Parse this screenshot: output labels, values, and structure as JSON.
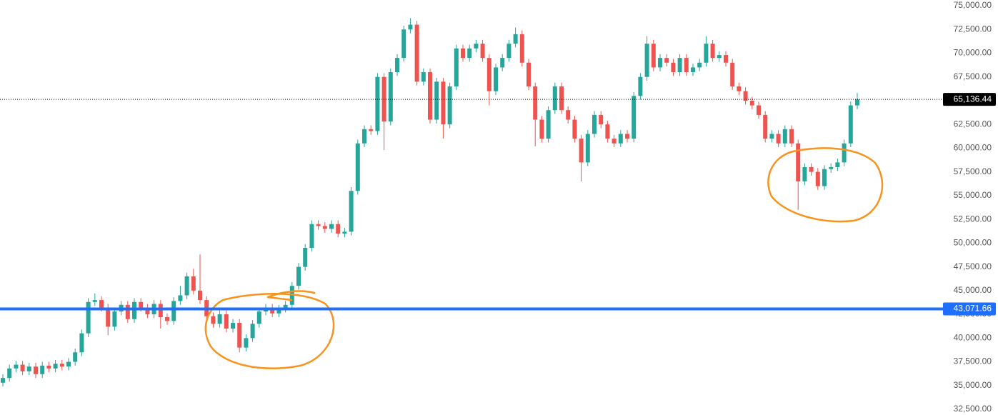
{
  "chart_data": {
    "type": "candlestick",
    "up_color": "#26a69a",
    "down_color": "#ef5350",
    "ylim": [
      31900,
      75600
    ],
    "yticks": [
      {
        "value": 32500,
        "label": "32,500.00"
      },
      {
        "value": 35000,
        "label": "35,000.00"
      },
      {
        "value": 37500,
        "label": "37,500.00"
      },
      {
        "value": 40000,
        "label": "40,000.00"
      },
      {
        "value": 42500,
        "label": "42,500.00"
      },
      {
        "value": 45000,
        "label": "45,000.00"
      },
      {
        "value": 47500,
        "label": "47,500.00"
      },
      {
        "value": 50000,
        "label": "50,000.00"
      },
      {
        "value": 52500,
        "label": "52,500.00"
      },
      {
        "value": 55000,
        "label": "55,000.00"
      },
      {
        "value": 57500,
        "label": "57,500.00"
      },
      {
        "value": 60000,
        "label": "60,000.00"
      },
      {
        "value": 62500,
        "label": "62,500.00"
      },
      {
        "value": 65000,
        "label": "65,000.00"
      },
      {
        "value": 67500,
        "label": "67,500.00"
      },
      {
        "value": 70000,
        "label": "70,000.00"
      },
      {
        "value": 72500,
        "label": "72,500.00"
      },
      {
        "value": 75000,
        "label": "75,000.00"
      }
    ],
    "horizontal_line": {
      "value": 43071.66,
      "label": "43,071.66",
      "color": "#1e6fff"
    },
    "last_price": {
      "value": 65136.44,
      "label": "65,136.44",
      "color": "#000000"
    },
    "open": [
      35300,
      35800,
      36800,
      37200,
      36500,
      37000,
      36200,
      37100,
      36800,
      37300,
      37000,
      37500,
      38500,
      40500,
      43800,
      44000,
      43200,
      41200,
      42800,
      43500,
      42000,
      43800,
      43200,
      42500,
      43600,
      42200,
      41800,
      43900,
      44500,
      46500,
      45000,
      44000,
      42300,
      41500,
      42500,
      41000,
      41600,
      39000,
      40000,
      41500,
      42800,
      43200,
      42600,
      43100,
      43500,
      45500,
      47500,
      49500,
      52000,
      51800,
      51500,
      52000,
      51000,
      51200,
      55500,
      60500,
      62000,
      61800,
      67500,
      62800,
      68000,
      69500,
      72500,
      73000,
      67000,
      68000,
      63000,
      67000,
      62500,
      66500,
      70500,
      69500,
      70500,
      71000,
      69500,
      66000,
      68500,
      69500,
      71000,
      72000,
      69000,
      66500,
      63000,
      61000,
      64000,
      66500,
      64000,
      63000,
      61000,
      58500,
      61500,
      63500,
      62500,
      61000,
      60500,
      61500,
      61000,
      65500,
      67500,
      71000,
      68500,
      69500,
      69000,
      68000,
      69500,
      68000,
      68500,
      69000,
      71000,
      69500,
      69800,
      69000,
      66500,
      66000,
      65000,
      64500,
      63500,
      61000,
      61500,
      60500,
      62000,
      60500,
      56500,
      58000,
      57500,
      56000,
      57800,
      58000,
      58500,
      60500,
      64500
    ],
    "high": [
      36200,
      37200,
      37600,
      37600,
      37400,
      37400,
      37500,
      37500,
      37700,
      37700,
      37900,
      38900,
      40900,
      44200,
      44700,
      44400,
      43600,
      43200,
      43900,
      43900,
      44200,
      44200,
      43600,
      44000,
      44000,
      42600,
      44300,
      45500,
      46900,
      47300,
      48800,
      44400,
      42700,
      42900,
      42900,
      42000,
      42000,
      40400,
      41900,
      43200,
      43600,
      43600,
      43500,
      43900,
      45900,
      47900,
      49900,
      52400,
      52400,
      52200,
      52400,
      52400,
      51600,
      55900,
      60900,
      62400,
      62400,
      67900,
      67900,
      68400,
      69900,
      72900,
      73700,
      73400,
      68400,
      68400,
      67400,
      67400,
      66900,
      70900,
      70900,
      70900,
      71400,
      71400,
      69900,
      68900,
      69900,
      71400,
      72700,
      72400,
      69400,
      66900,
      63400,
      64400,
      66900,
      66900,
      64400,
      63400,
      61400,
      61900,
      63900,
      63900,
      62900,
      61400,
      61900,
      61900,
      65900,
      67900,
      71800,
      71400,
      69900,
      69900,
      69400,
      69900,
      69900,
      68900,
      69400,
      71800,
      71400,
      70200,
      70200,
      69400,
      66900,
      66400,
      65400,
      64900,
      63900,
      61900,
      61900,
      62400,
      62400,
      60900,
      58400,
      58400,
      57900,
      58200,
      58400,
      58900,
      60900,
      64900,
      65800
    ],
    "low": [
      34900,
      35400,
      36400,
      36100,
      36100,
      35800,
      35800,
      36400,
      36400,
      36600,
      36600,
      37100,
      38100,
      40100,
      43400,
      42800,
      40300,
      40800,
      42400,
      41600,
      41600,
      42800,
      42100,
      42100,
      41000,
      41400,
      41400,
      43500,
      44100,
      44600,
      43600,
      41900,
      41100,
      41100,
      40600,
      40600,
      38500,
      38600,
      39600,
      41100,
      42400,
      42200,
      42200,
      42700,
      43100,
      45100,
      47100,
      49100,
      51400,
      51100,
      51100,
      50600,
      50600,
      50800,
      55100,
      60100,
      61400,
      61400,
      59800,
      62400,
      67600,
      69100,
      72100,
      66600,
      66600,
      62600,
      62600,
      61000,
      62100,
      66100,
      69100,
      69100,
      70100,
      69100,
      64500,
      65600,
      68100,
      69100,
      70600,
      68600,
      66100,
      60200,
      60600,
      60600,
      63600,
      63600,
      62600,
      60600,
      56500,
      58100,
      61100,
      62100,
      60600,
      60100,
      60100,
      60600,
      60600,
      65100,
      67100,
      68100,
      68100,
      68600,
      67600,
      67600,
      67600,
      67600,
      68100,
      68600,
      69100,
      69100,
      68600,
      66100,
      65600,
      64600,
      64100,
      63100,
      60600,
      60600,
      60100,
      60100,
      60100,
      53500,
      56100,
      57100,
      55600,
      55600,
      57400,
      57600,
      58100,
      60100,
      64100
    ],
    "close": [
      35800,
      36800,
      37200,
      36500,
      37000,
      36200,
      37100,
      36800,
      37300,
      37000,
      37500,
      38500,
      40500,
      43800,
      44000,
      43200,
      41200,
      42800,
      43500,
      42000,
      43800,
      43200,
      42500,
      43600,
      42200,
      41800,
      43900,
      44500,
      46500,
      45000,
      44000,
      42300,
      41500,
      42500,
      41000,
      41600,
      39000,
      40000,
      41500,
      42800,
      43200,
      42600,
      43100,
      43500,
      45500,
      47500,
      49500,
      52000,
      51800,
      51500,
      52000,
      51000,
      51200,
      55500,
      60500,
      62000,
      61800,
      67500,
      62800,
      68000,
      69500,
      72500,
      73000,
      67000,
      68000,
      63000,
      67000,
      62500,
      66500,
      70500,
      69500,
      70500,
      71000,
      69500,
      66000,
      68500,
      69500,
      71000,
      72000,
      69000,
      66500,
      63000,
      61000,
      64000,
      66500,
      64000,
      63000,
      61000,
      58500,
      61500,
      63500,
      62500,
      61000,
      60500,
      61500,
      61000,
      65500,
      67500,
      71000,
      68500,
      69500,
      69000,
      68000,
      69500,
      68000,
      68500,
      69000,
      71000,
      69500,
      69800,
      69000,
      66500,
      66000,
      65000,
      64500,
      63500,
      61000,
      61500,
      60500,
      62000,
      60500,
      56500,
      58000,
      57500,
      56000,
      57800,
      58000,
      58500,
      60500,
      64500,
      65136.44
    ]
  }
}
